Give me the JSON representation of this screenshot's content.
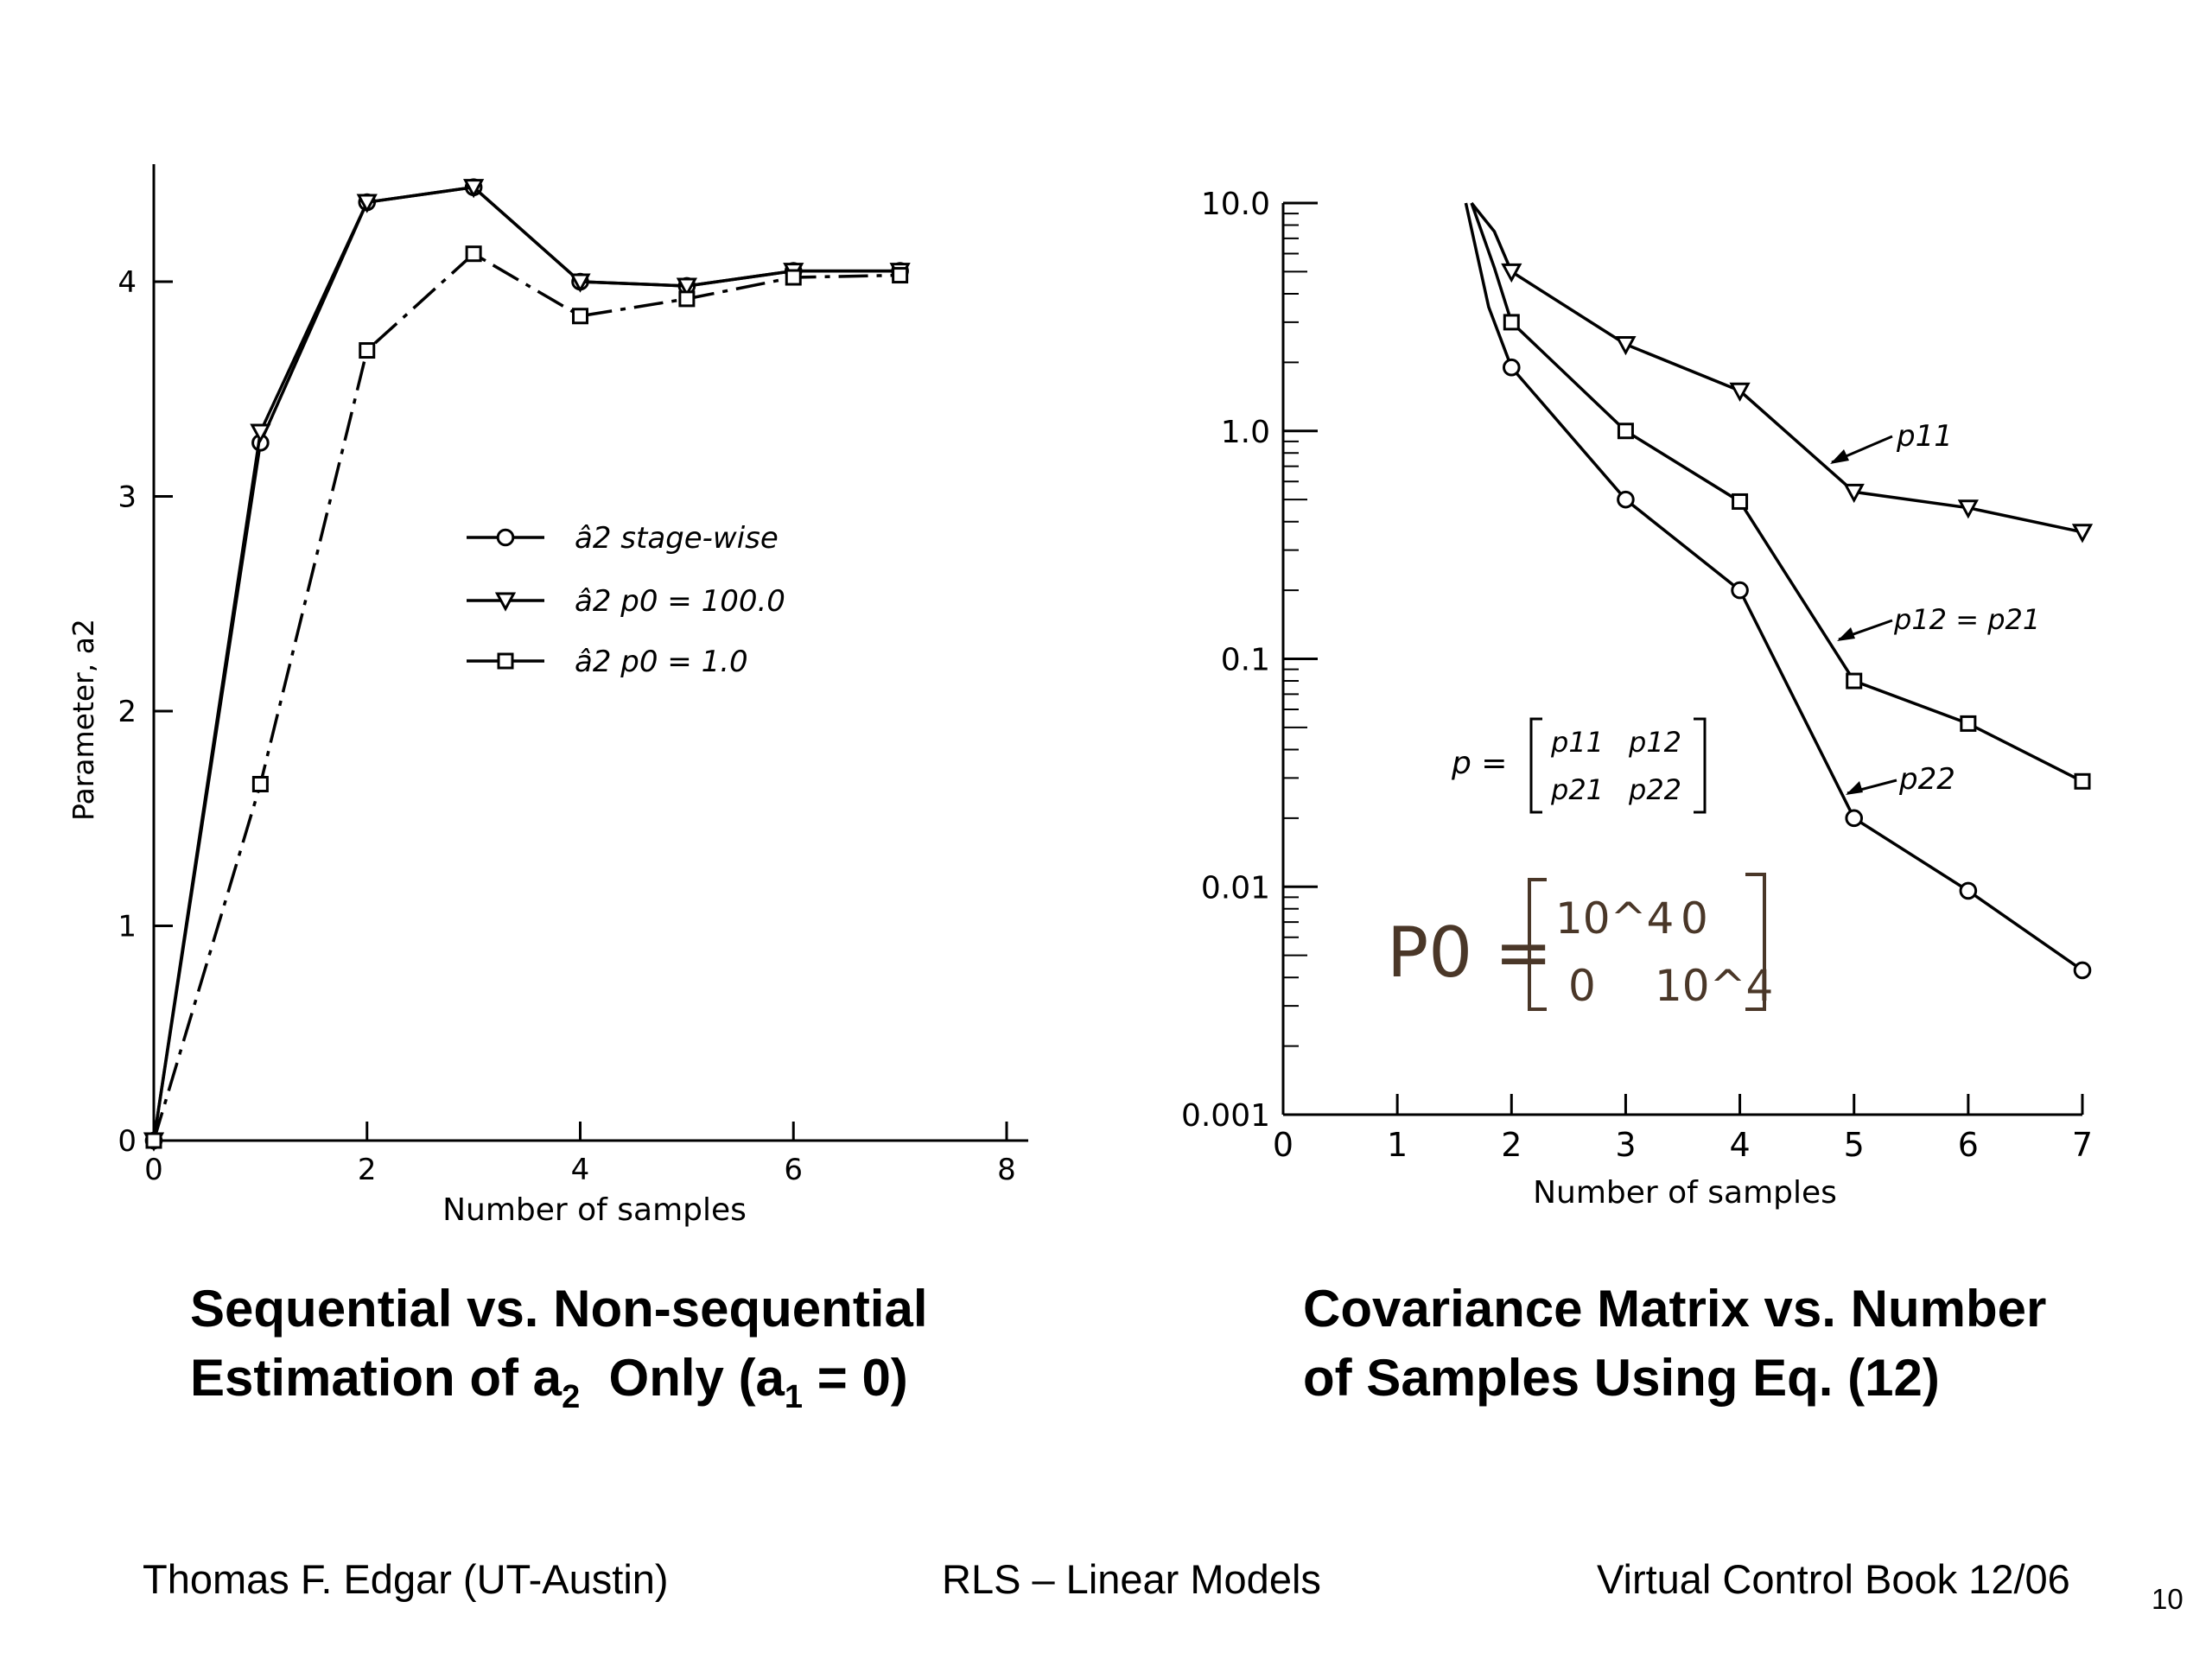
{
  "chart_data": [
    {
      "type": "line",
      "xlabel": "Number of samples",
      "ylabel": "Parameter, a2",
      "xlim": [
        0,
        8
      ],
      "ylim": [
        0,
        4.5
      ],
      "x_ticks": [
        "0",
        "2",
        "4",
        "6",
        "8"
      ],
      "y_ticks": [
        "0",
        "1",
        "2",
        "3",
        "4"
      ],
      "grid": false,
      "legend_position": "center",
      "x": [
        0,
        1,
        2,
        3,
        4,
        5,
        6,
        7
      ],
      "series": [
        {
          "name": "â2 stage-wise",
          "marker": "circle",
          "style": "solid",
          "values": [
            0,
            3.25,
            4.37,
            4.44,
            4.0,
            3.98,
            4.05,
            4.05
          ]
        },
        {
          "name": "â2 p0 = 100.0",
          "marker": "triangle-down",
          "style": "solid",
          "values": [
            0,
            3.3,
            4.37,
            4.44,
            4.0,
            3.98,
            4.05,
            4.05
          ]
        },
        {
          "name": "â2 p0 = 1.0",
          "marker": "square",
          "style": "dash-dot",
          "values": [
            0,
            1.66,
            3.68,
            4.13,
            3.84,
            3.92,
            4.02,
            4.03
          ]
        }
      ]
    },
    {
      "type": "line",
      "xlabel": "Number of samples",
      "ylabel": "",
      "y_scale": "log",
      "xlim": [
        0,
        7
      ],
      "ylim": [
        0.001,
        10.0
      ],
      "x_ticks": [
        "0",
        "1",
        "2",
        "3",
        "4",
        "5",
        "6",
        "7"
      ],
      "y_ticks": [
        "0.001",
        "0.01",
        "0.1",
        "1.0",
        "10.0"
      ],
      "grid": false,
      "x": [
        2,
        3,
        4,
        5,
        6,
        7
      ],
      "series": [
        {
          "name": "p11",
          "marker": "triangle-down",
          "values": [
            5.0,
            2.4,
            1.5,
            0.54,
            0.46,
            0.36
          ]
        },
        {
          "name": "p12 = p21",
          "marker": "square",
          "values": [
            3.0,
            1.0,
            0.49,
            0.08,
            0.052,
            0.029
          ]
        },
        {
          "name": "p22",
          "marker": "circle",
          "values": [
            1.9,
            0.5,
            0.2,
            0.02,
            0.0096,
            0.0043
          ]
        }
      ],
      "initial_curve": [
        {
          "series": "p11",
          "x": [
            1.65,
            1.85,
            2.0
          ],
          "values": [
            10.0,
            7.5,
            5.0
          ]
        },
        {
          "series": "p12 = p21",
          "x": [
            1.65,
            1.85,
            2.0
          ],
          "values": [
            10.0,
            5.2,
            3.0
          ]
        },
        {
          "series": "p22",
          "x": [
            1.6,
            1.8,
            2.0
          ],
          "values": [
            10.0,
            3.5,
            1.9
          ]
        }
      ],
      "annotations": {
        "matrix_lhs": "p =",
        "matrix_entries": [
          "p11",
          "p12",
          "p21",
          "p22"
        ],
        "p0_lhs": "P0 =",
        "p0_entries": [
          "10^4",
          "0",
          "0",
          "10^4"
        ]
      }
    }
  ],
  "captions": {
    "left_line1": "Sequential vs. Non-sequential",
    "left_line2_pre": "Estimation of a",
    "left_line2_sub1": "2",
    "left_line2_mid": "  Only (a",
    "left_line2_sub2": "1",
    "left_line2_post": " = 0)",
    "right_line1": "Covariance Matrix vs. Number",
    "right_line2": "of Samples Using Eq. (12)"
  },
  "footer": {
    "author": "Thomas F. Edgar (UT-Austin)",
    "topic": "RLS – Linear Models",
    "book": "Virtual Control Book 12/06",
    "page": "10"
  }
}
